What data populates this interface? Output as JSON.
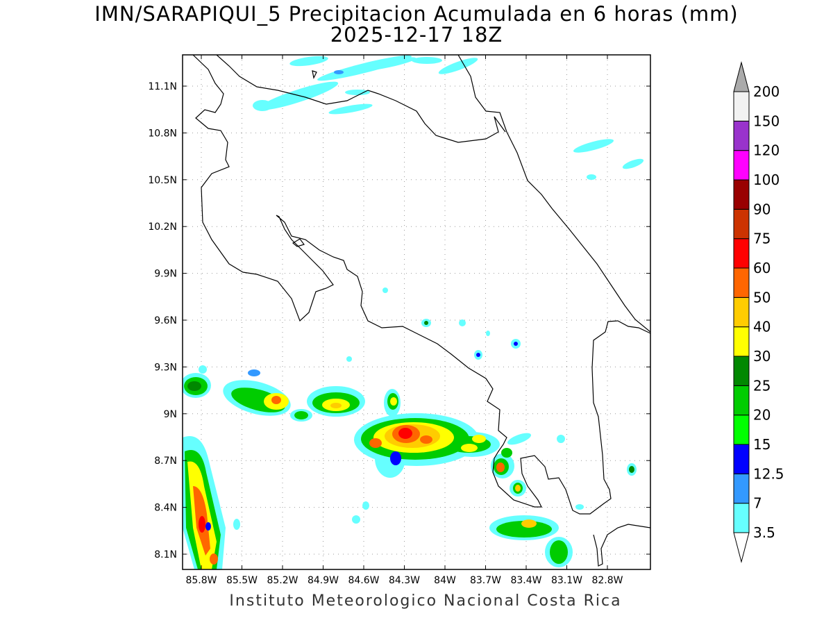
{
  "title": {
    "line1": "IMN/SARAPIQUI_5 Precipitacion Acumulada en 6 horas (mm)",
    "line2": "2025-12-17 18Z"
  },
  "credit": "Instituto Meteorologico Nacional Costa Rica",
  "axes": {
    "lon_labels": [
      "85.8W",
      "85.5W",
      "85.2W",
      "84.9W",
      "84.6W",
      "84.3W",
      "84W",
      "83.7W",
      "83.4W",
      "83.1W",
      "82.8W"
    ],
    "lat_labels": [
      "11.1N",
      "10.8N",
      "10.5N",
      "10.2N",
      "9.9N",
      "9.6N",
      "9.3N",
      "9N",
      "8.7N",
      "8.4N",
      "8.1N"
    ]
  },
  "legend": {
    "levels": [
      "3.5",
      "7",
      "12.5",
      "15",
      "20",
      "25",
      "30",
      "40",
      "50",
      "60",
      "75",
      "90",
      "100",
      "120",
      "150",
      "200"
    ],
    "colors": [
      "#ffffff",
      "#66ffff",
      "#3399ff",
      "#0000ff",
      "#00ff00",
      "#00cc00",
      "#008800",
      "#ffff00",
      "#ffcc00",
      "#ff6600",
      "#ff0000",
      "#cc3300",
      "#990000",
      "#ff00ff",
      "#9933cc",
      "#f2f2f2",
      "#aaaaaa"
    ]
  }
}
